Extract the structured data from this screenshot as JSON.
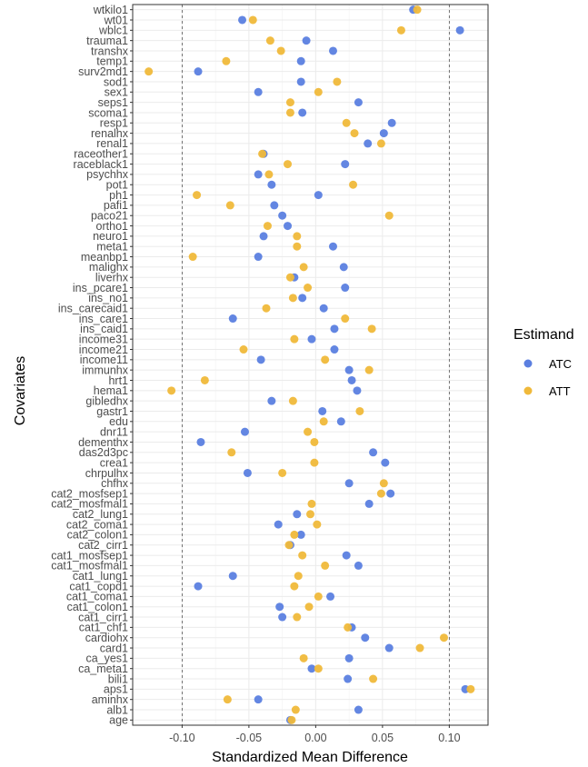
{
  "chart_data": {
    "type": "scatter",
    "xlabel": "Standardized Mean Difference",
    "ylabel": "Covariates",
    "xlim": [
      -0.137,
      0.129
    ],
    "x_ticks": [
      -0.1,
      -0.05,
      0.0,
      0.05,
      0.1
    ],
    "x_tick_labels": [
      "-0.10",
      "-0.05",
      "0.00",
      "0.05",
      "0.10"
    ],
    "reference_lines": [
      -0.1,
      0.1
    ],
    "grid": true,
    "legend_position": "right",
    "legend": {
      "title": "Estimand",
      "items": [
        {
          "label": "ATC",
          "color": "#5b7fe0"
        },
        {
          "label": "ATT",
          "color": "#f0b93a"
        }
      ]
    },
    "categories": [
      "wtkilo1",
      "wt01",
      "wblc1",
      "trauma1",
      "transhx",
      "temp1",
      "surv2md1",
      "sod1",
      "sex1",
      "seps1",
      "scoma1",
      "resp1",
      "renalhx",
      "renal1",
      "raceother1",
      "raceblack1",
      "psychhx",
      "pot1",
      "ph1",
      "pafi1",
      "paco21",
      "ortho1",
      "neuro1",
      "meta1",
      "meanbp1",
      "malighx",
      "liverhx",
      "ins_pcare1",
      "ins_no1",
      "ins_carecaid1",
      "ins_care1",
      "ins_caid1",
      "income31",
      "income21",
      "income11",
      "immunhx",
      "hrt1",
      "hema1",
      "gibledhx",
      "gastr1",
      "edu",
      "dnr11",
      "dementhx",
      "das2d3pc",
      "crea1",
      "chrpulhx",
      "chfhx",
      "cat2_mosfsep1",
      "cat2_mosfmal1",
      "cat2_lung1",
      "cat2_coma1",
      "cat2_colon1",
      "cat2_cirr1",
      "cat1_mosfsep1",
      "cat1_mosfmal1",
      "cat1_lung1",
      "cat1_copd1",
      "cat1_coma1",
      "cat1_colon1",
      "cat1_cirr1",
      "cat1_chf1",
      "cardiohx",
      "card1",
      "ca_yes1",
      "ca_meta1",
      "bili1",
      "aps1",
      "aminhx",
      "alb1",
      "age"
    ],
    "series": [
      {
        "name": "ATC",
        "color": "#5b7fe0",
        "values": [
          0.073,
          -0.055,
          0.108,
          -0.007,
          0.013,
          -0.011,
          -0.088,
          -0.011,
          -0.043,
          0.032,
          -0.01,
          0.057,
          0.051,
          0.039,
          -0.039,
          0.022,
          -0.043,
          -0.033,
          0.002,
          -0.031,
          -0.025,
          -0.021,
          -0.039,
          0.013,
          -0.043,
          0.021,
          -0.016,
          0.022,
          -0.01,
          0.006,
          -0.062,
          0.014,
          -0.003,
          0.014,
          -0.041,
          0.025,
          0.027,
          0.031,
          -0.033,
          0.005,
          0.019,
          -0.053,
          -0.086,
          0.043,
          0.052,
          -0.051,
          0.025,
          0.056,
          0.04,
          -0.014,
          -0.028,
          -0.011,
          -0.019,
          0.023,
          0.032,
          -0.062,
          -0.088,
          0.011,
          -0.027,
          -0.025,
          0.027,
          0.037,
          0.055,
          0.025,
          -0.003,
          0.024,
          0.112,
          -0.043,
          0.032,
          -0.019
        ]
      },
      {
        "name": "ATT",
        "color": "#f0b93a",
        "values": [
          0.076,
          -0.047,
          0.064,
          -0.034,
          -0.026,
          -0.067,
          -0.125,
          0.016,
          0.002,
          -0.019,
          -0.019,
          0.023,
          0.029,
          0.049,
          -0.04,
          -0.021,
          -0.035,
          0.028,
          -0.089,
          -0.064,
          0.055,
          -0.036,
          -0.014,
          -0.014,
          -0.092,
          -0.009,
          -0.019,
          -0.006,
          -0.017,
          -0.037,
          0.022,
          0.042,
          -0.016,
          -0.054,
          0.007,
          0.04,
          -0.083,
          -0.108,
          -0.017,
          0.033,
          0.006,
          -0.006,
          -0.001,
          -0.063,
          -0.001,
          -0.025,
          0.051,
          0.049,
          -0.003,
          -0.004,
          0.001,
          -0.016,
          -0.02,
          -0.01,
          0.007,
          -0.013,
          -0.016,
          0.002,
          -0.005,
          -0.014,
          0.024,
          0.096,
          0.078,
          -0.009,
          0.002,
          0.043,
          0.116,
          -0.066,
          -0.015,
          -0.018
        ]
      }
    ]
  }
}
